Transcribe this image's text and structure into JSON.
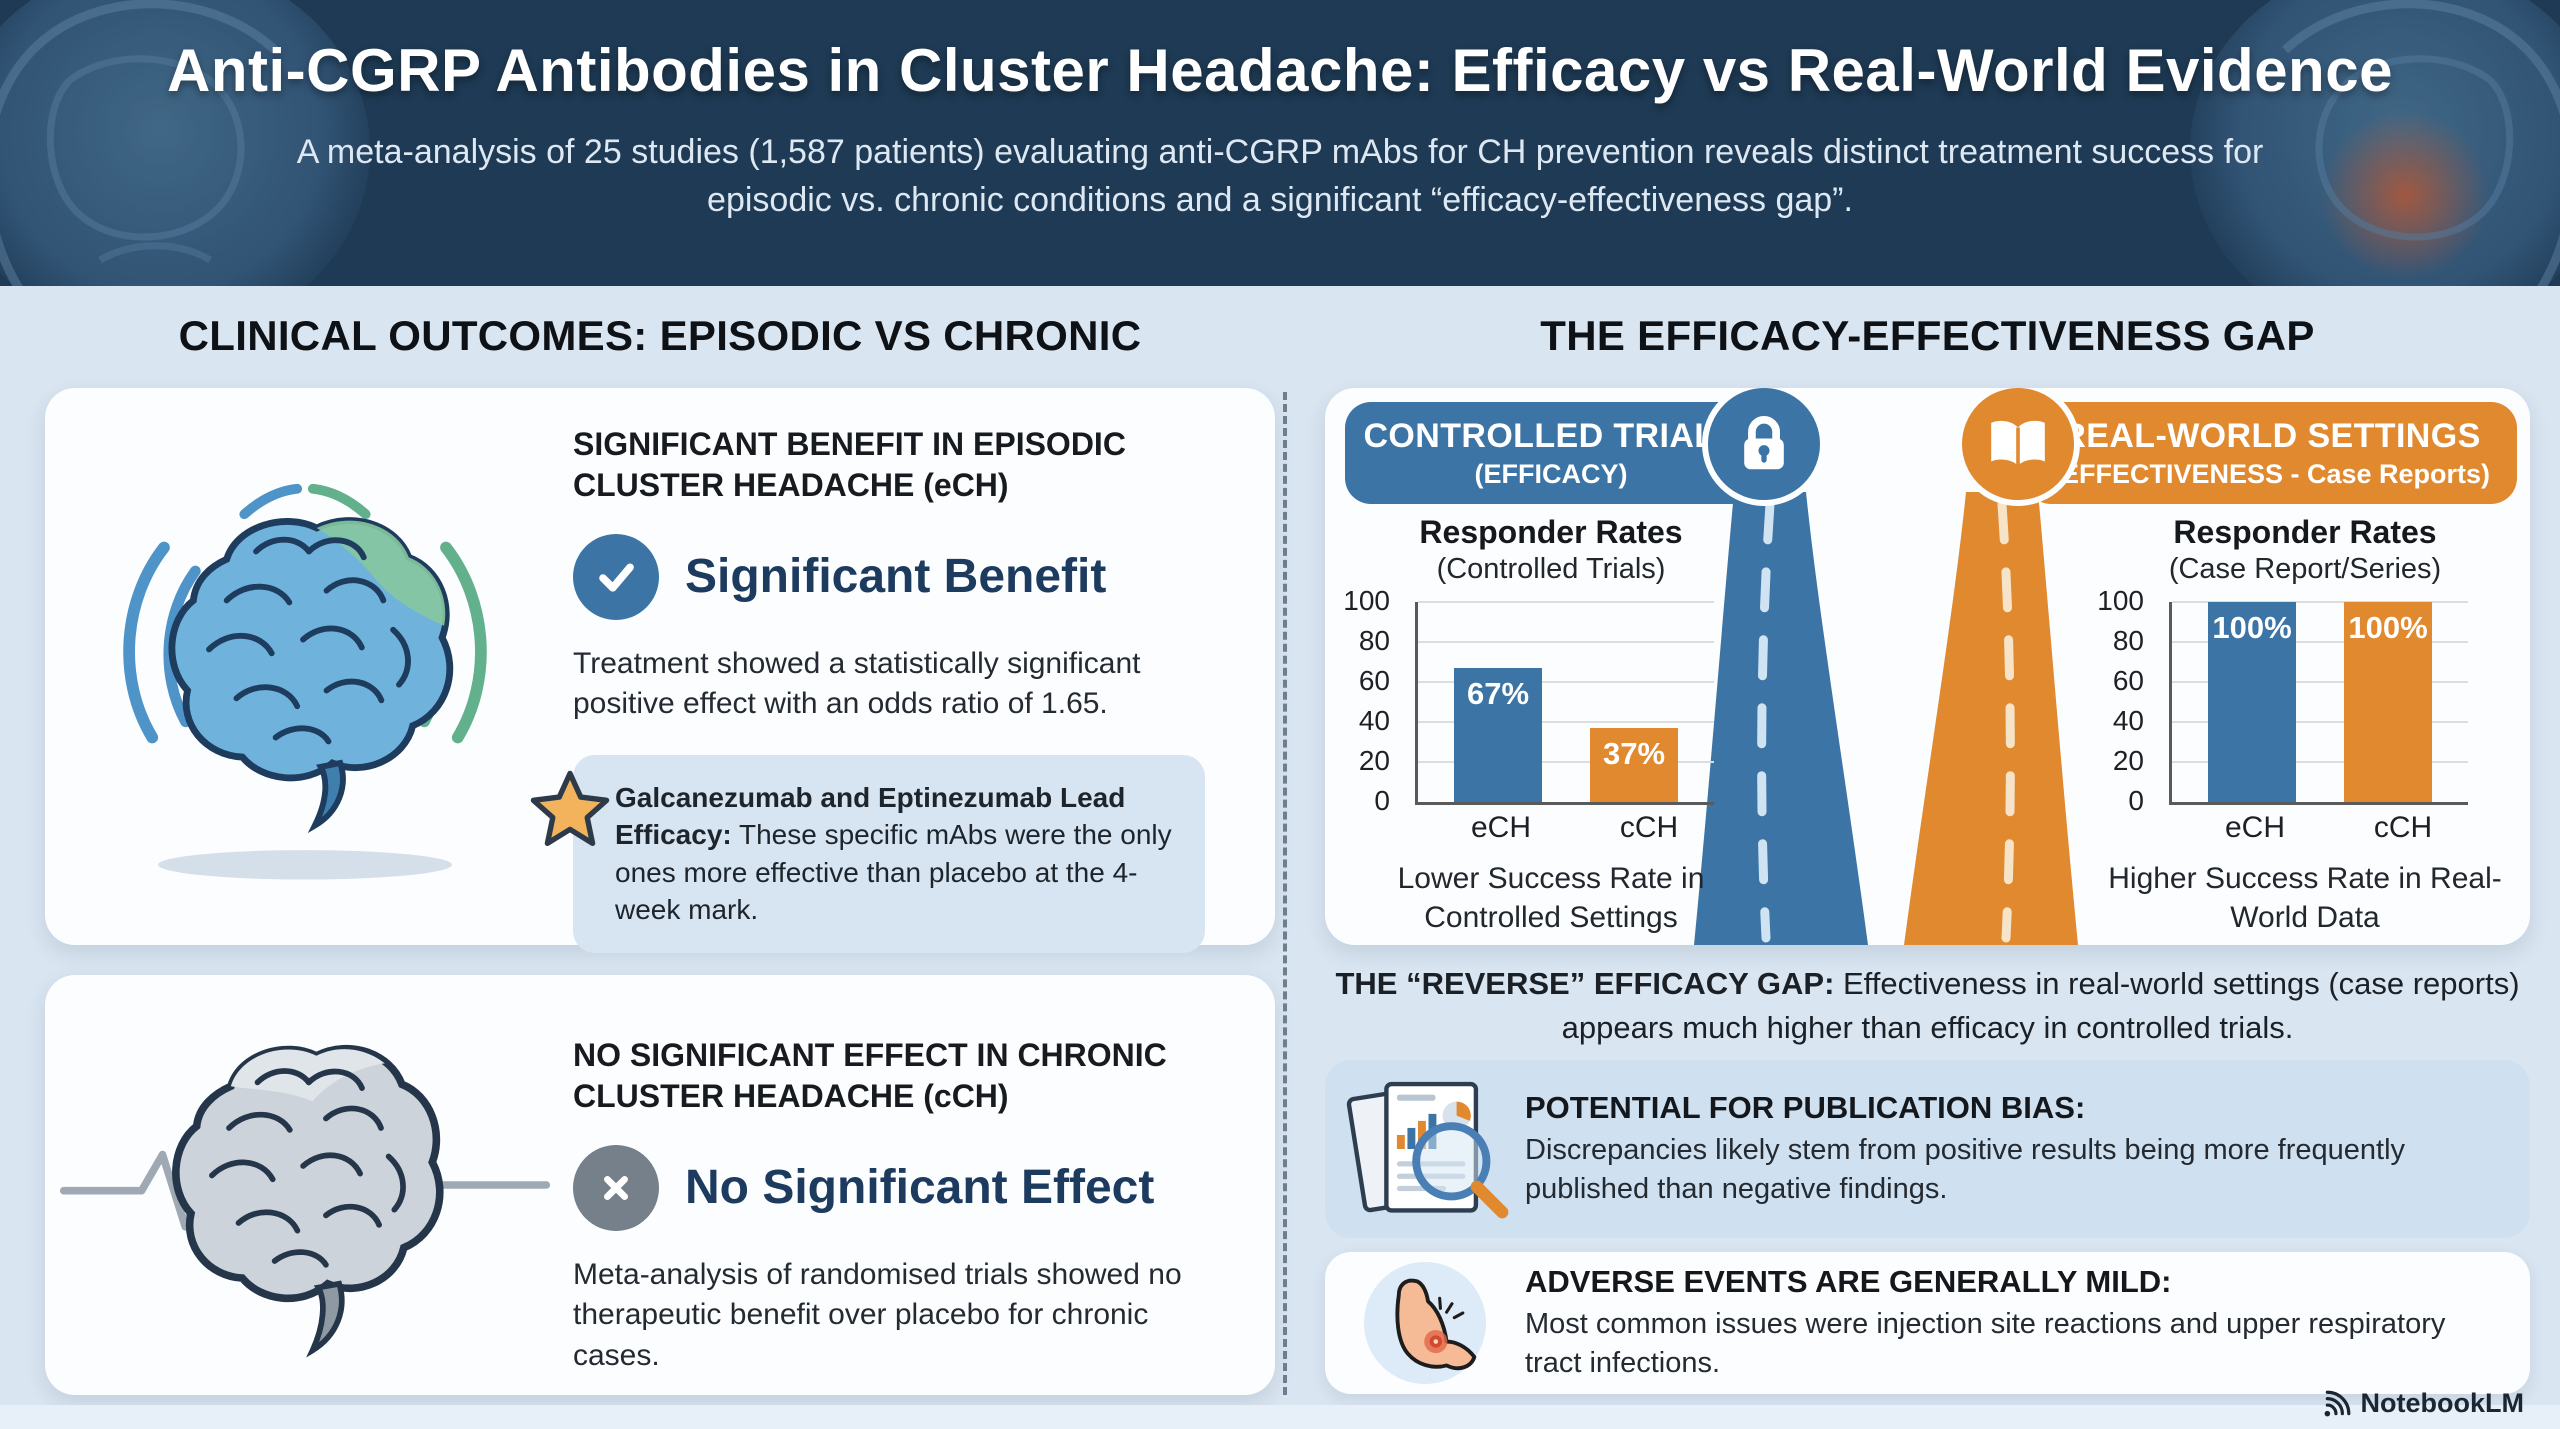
{
  "header": {
    "title": "Anti-CGRP Antibodies in Cluster Headache: Efficacy vs Real-World Evidence",
    "subtitle": "A meta-analysis of 25 studies (1,587 patients) evaluating anti-CGRP mAbs for CH prevention reveals distinct treatment success for episodic vs. chronic conditions and a significant “efficacy-effectiveness gap”."
  },
  "left_section": {
    "heading": "CLINICAL OUTCOMES: EPISODIC VS CHRONIC",
    "card_ech": {
      "title": "SIGNIFICANT BENEFIT IN EPISODIC CLUSTER HEADACHE (eCH)",
      "verdict": "Significant Benefit",
      "body": "Treatment showed a statistically significant positive effect with an odds ratio of 1.65.",
      "callout_bold": "Galcanezumab and Eptinezumab Lead Efficacy:",
      "callout_text": " These specific mAbs were the only ones more effective than placebo at the 4-week mark."
    },
    "card_cch": {
      "title": "NO SIGNIFICANT EFFECT IN CHRONIC CLUSTER HEADACHE (cCH)",
      "verdict": "No Significant Effect",
      "body": "Meta-analysis of randomised trials showed no therapeutic benefit over placebo for chronic cases."
    }
  },
  "right_section": {
    "heading": "THE EFFICACY-EFFECTIVENESS GAP",
    "badge_trials": {
      "title": "CONTROLLED TRIALS",
      "subtitle": "(EFFICACY)"
    },
    "badge_realworld": {
      "title": "REAL-WORLD SETTINGS",
      "subtitle": "(EFFECTIVENESS - Case Reports)"
    },
    "gap_bold": "THE “REVERSE” EFFICACY GAP:",
    "gap_text": " Effectiveness in real-world settings (case reports) appears much higher than efficacy in controlled trials.",
    "bias_box": {
      "title": "POTENTIAL FOR PUBLICATION BIAS:",
      "body": "Discrepancies likely stem from positive results being more frequently published than negative findings."
    },
    "adverse_box": {
      "title": "ADVERSE EVENTS ARE GENERALLY MILD:",
      "body": "Most common issues were injection site reactions and upper respiratory tract infections."
    }
  },
  "chart_data": [
    {
      "type": "bar",
      "title": "Responder Rates",
      "subtitle": "(Controlled Trials)",
      "categories": [
        "eCH",
        "cCH"
      ],
      "values": [
        67,
        37
      ],
      "value_labels": [
        "67%",
        "37%"
      ],
      "bar_colors": [
        "#3b74a5",
        "#e0892f"
      ],
      "ylim": [
        0,
        100
      ],
      "yticks": [
        0,
        20,
        40,
        60,
        80,
        100
      ],
      "grid": true,
      "legend": "none",
      "caption": "Lower Success Rate in Controlled Settings"
    },
    {
      "type": "bar",
      "title": "Responder Rates",
      "subtitle": "(Case Report/Series)",
      "categories": [
        "eCH",
        "cCH"
      ],
      "values": [
        100,
        100
      ],
      "value_labels": [
        "100%",
        "100%"
      ],
      "bar_colors": [
        "#3b74a5",
        "#e0892f"
      ],
      "ylim": [
        0,
        100
      ],
      "yticks": [
        0,
        20,
        40,
        60,
        80,
        100
      ],
      "grid": true,
      "legend": "none",
      "caption": "Higher Success Rate in Real-World Data"
    }
  ],
  "footer": {
    "brand": "NotebookLM"
  },
  "icons": {
    "check": "check-icon",
    "cross": "cross-icon",
    "star": "star-icon",
    "lock": "lock-icon",
    "open_book": "open-book-icon",
    "documents_magnifier": "documents-magnifier-icon",
    "flexed_arm": "flexed-arm-icon",
    "brand_waves": "notebooklm-logo-icon"
  },
  "colors": {
    "header_bg": "#1e3a54",
    "page_bg": "#d9e5f1",
    "accent_blue": "#3b74a5",
    "accent_orange": "#e0892f",
    "navy_text": "#1d3a5f",
    "callout_bg": "#d7e4f1",
    "bias_box_bg": "#cfe0f0"
  }
}
